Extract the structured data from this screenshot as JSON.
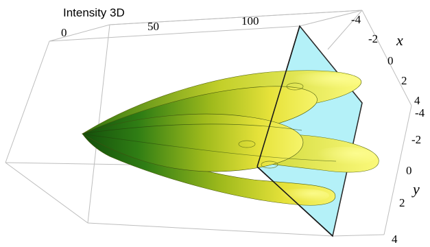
{
  "title": "Intensity 3D",
  "axes": {
    "intensity_ticks": [
      "0",
      "50",
      "100"
    ],
    "x_label": "x",
    "x_ticks": [
      "-4",
      "-2",
      "0",
      "2",
      "4"
    ],
    "y_label": "y",
    "y_ticks": [
      "-4",
      "-2",
      "0",
      "2",
      "4"
    ]
  },
  "colors": {
    "surface_light": "#f4f25a",
    "surface_mid": "#b8c81e",
    "surface_dark": "#1e6a10",
    "plane_fill": "#aef0f8",
    "box_line": "#bdbdbd"
  }
}
